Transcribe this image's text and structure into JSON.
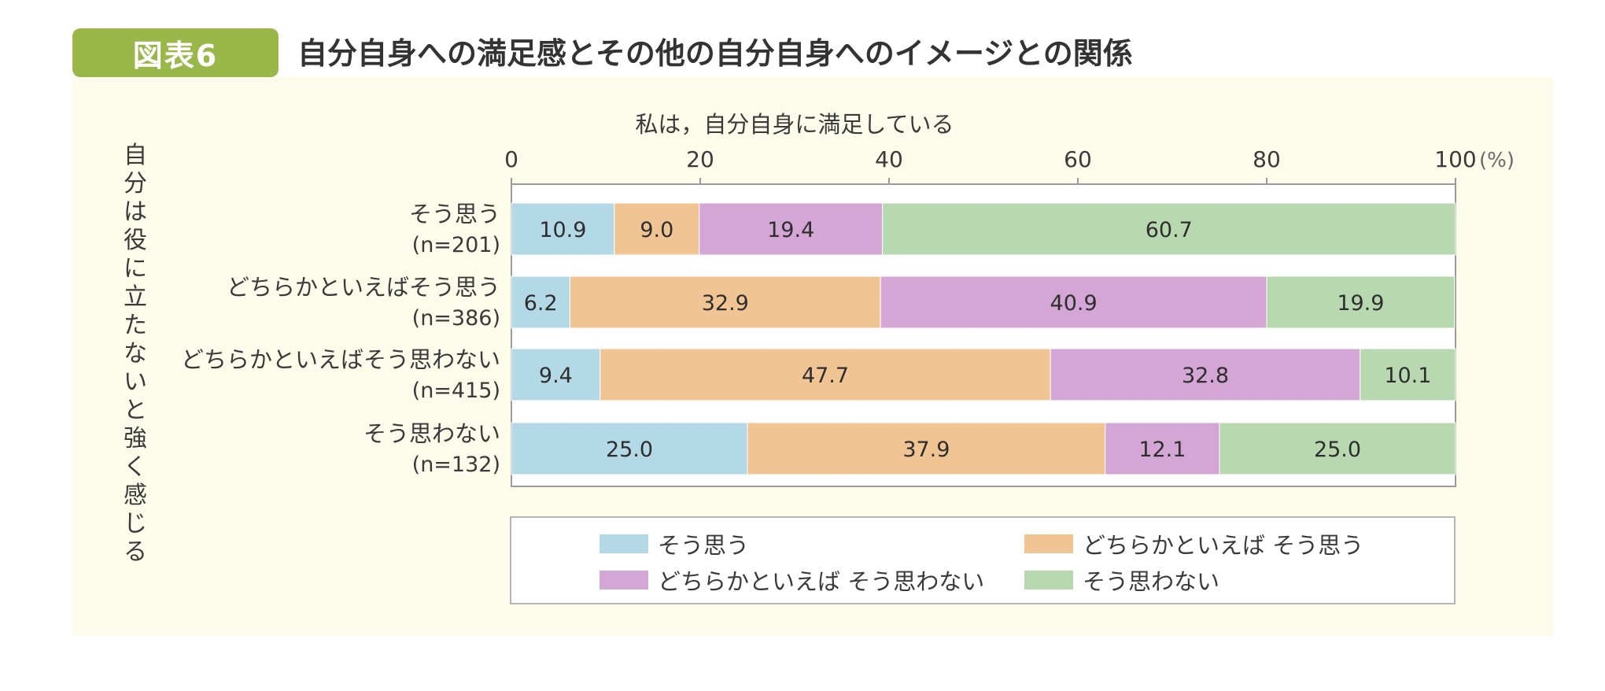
{
  "figure": {
    "badge": "図表6",
    "title": "自分自身への満足感とその他の自分自身へのイメージとの関係"
  },
  "colors": {
    "badge": "#9ab84a",
    "panel": "#fdfbea",
    "series": [
      "#b3d9e6",
      "#f1c494",
      "#d3a6d6",
      "#b8d9b0"
    ]
  },
  "chart_data": {
    "type": "bar",
    "orientation": "horizontal",
    "stacked": true,
    "title": "私は，自分自身に満足している",
    "ylabel": "自分は役に立たないと強く感じる",
    "xlim": [
      0,
      100
    ],
    "xticks": [
      "0",
      "20",
      "40",
      "60",
      "80",
      "100"
    ],
    "x_unit": "(%)",
    "categories": [
      {
        "label": "そう思う",
        "n": "(n=201)"
      },
      {
        "label": "どちらかといえばそう思う",
        "n": "(n=386)"
      },
      {
        "label": "どちらかといえばそう思わない",
        "n": "(n=415)"
      },
      {
        "label": "そう思わない",
        "n": "(n=132)"
      }
    ],
    "series": [
      {
        "name": "そう思う",
        "values": [
          10.9,
          6.2,
          9.4,
          25.0
        ]
      },
      {
        "name": "どちらかといえば そう思う",
        "values": [
          9.0,
          32.9,
          47.7,
          37.9
        ]
      },
      {
        "name": "どちらかといえば そう思わない",
        "values": [
          19.4,
          40.9,
          32.8,
          12.1
        ]
      },
      {
        "name": "そう思わない",
        "values": [
          60.7,
          19.9,
          10.1,
          25.0
        ]
      }
    ],
    "legend": [
      "そう思う",
      "どちらかといえば そう思う",
      "どちらかといえば そう思わない",
      "そう思わない"
    ]
  }
}
